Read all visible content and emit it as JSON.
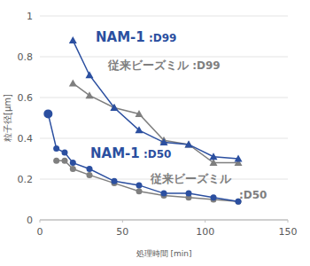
{
  "chart_data": {
    "type": "line",
    "x_label": "処理時間 [min]",
    "y_label": "粒子径[μm]",
    "xlim": [
      0,
      150
    ],
    "xticks": [
      0,
      50,
      100,
      150
    ],
    "ylim": [
      0,
      1
    ],
    "yticks": [
      0,
      0.2,
      0.4,
      0.6,
      0.8,
      1
    ],
    "grid": true,
    "series": [
      {
        "name": "従来ビーズミル :D99",
        "color": "#7f7f7f",
        "marker": "triangle",
        "line_style": "solid",
        "x": [
          20,
          30,
          45,
          60,
          75,
          90,
          105,
          120
        ],
        "values": [
          0.67,
          0.61,
          0.55,
          0.52,
          0.39,
          0.37,
          0.28,
          0.28
        ]
      },
      {
        "name": "従来ビーズミル :D50",
        "color": "#7f7f7f",
        "marker": "circle",
        "line_style": "solid",
        "x": [
          10,
          15,
          20,
          30,
          45,
          60,
          75,
          90,
          105,
          120
        ],
        "values": [
          0.29,
          0.29,
          0.25,
          0.22,
          0.18,
          0.14,
          0.12,
          0.11,
          0.1,
          0.09
        ]
      },
      {
        "name": "NAM-1 :D99",
        "color": "#2b4fa0",
        "marker": "triangle",
        "line_style": "solid",
        "x": [
          20,
          30,
          45,
          60,
          75,
          90,
          105,
          120
        ],
        "values": [
          0.88,
          0.71,
          0.55,
          0.44,
          0.38,
          0.37,
          0.31,
          0.3
        ]
      },
      {
        "name": "NAM-1 :D50",
        "color": "#2b4fa0",
        "marker": "circle",
        "line_style": "solid",
        "x": [
          5,
          10,
          15,
          20,
          30,
          45,
          60,
          75,
          90,
          105,
          120
        ],
        "values": [
          0.52,
          0.35,
          0.33,
          0.28,
          0.25,
          0.19,
          0.17,
          0.13,
          0.13,
          0.11,
          0.09
        ]
      }
    ]
  }
}
